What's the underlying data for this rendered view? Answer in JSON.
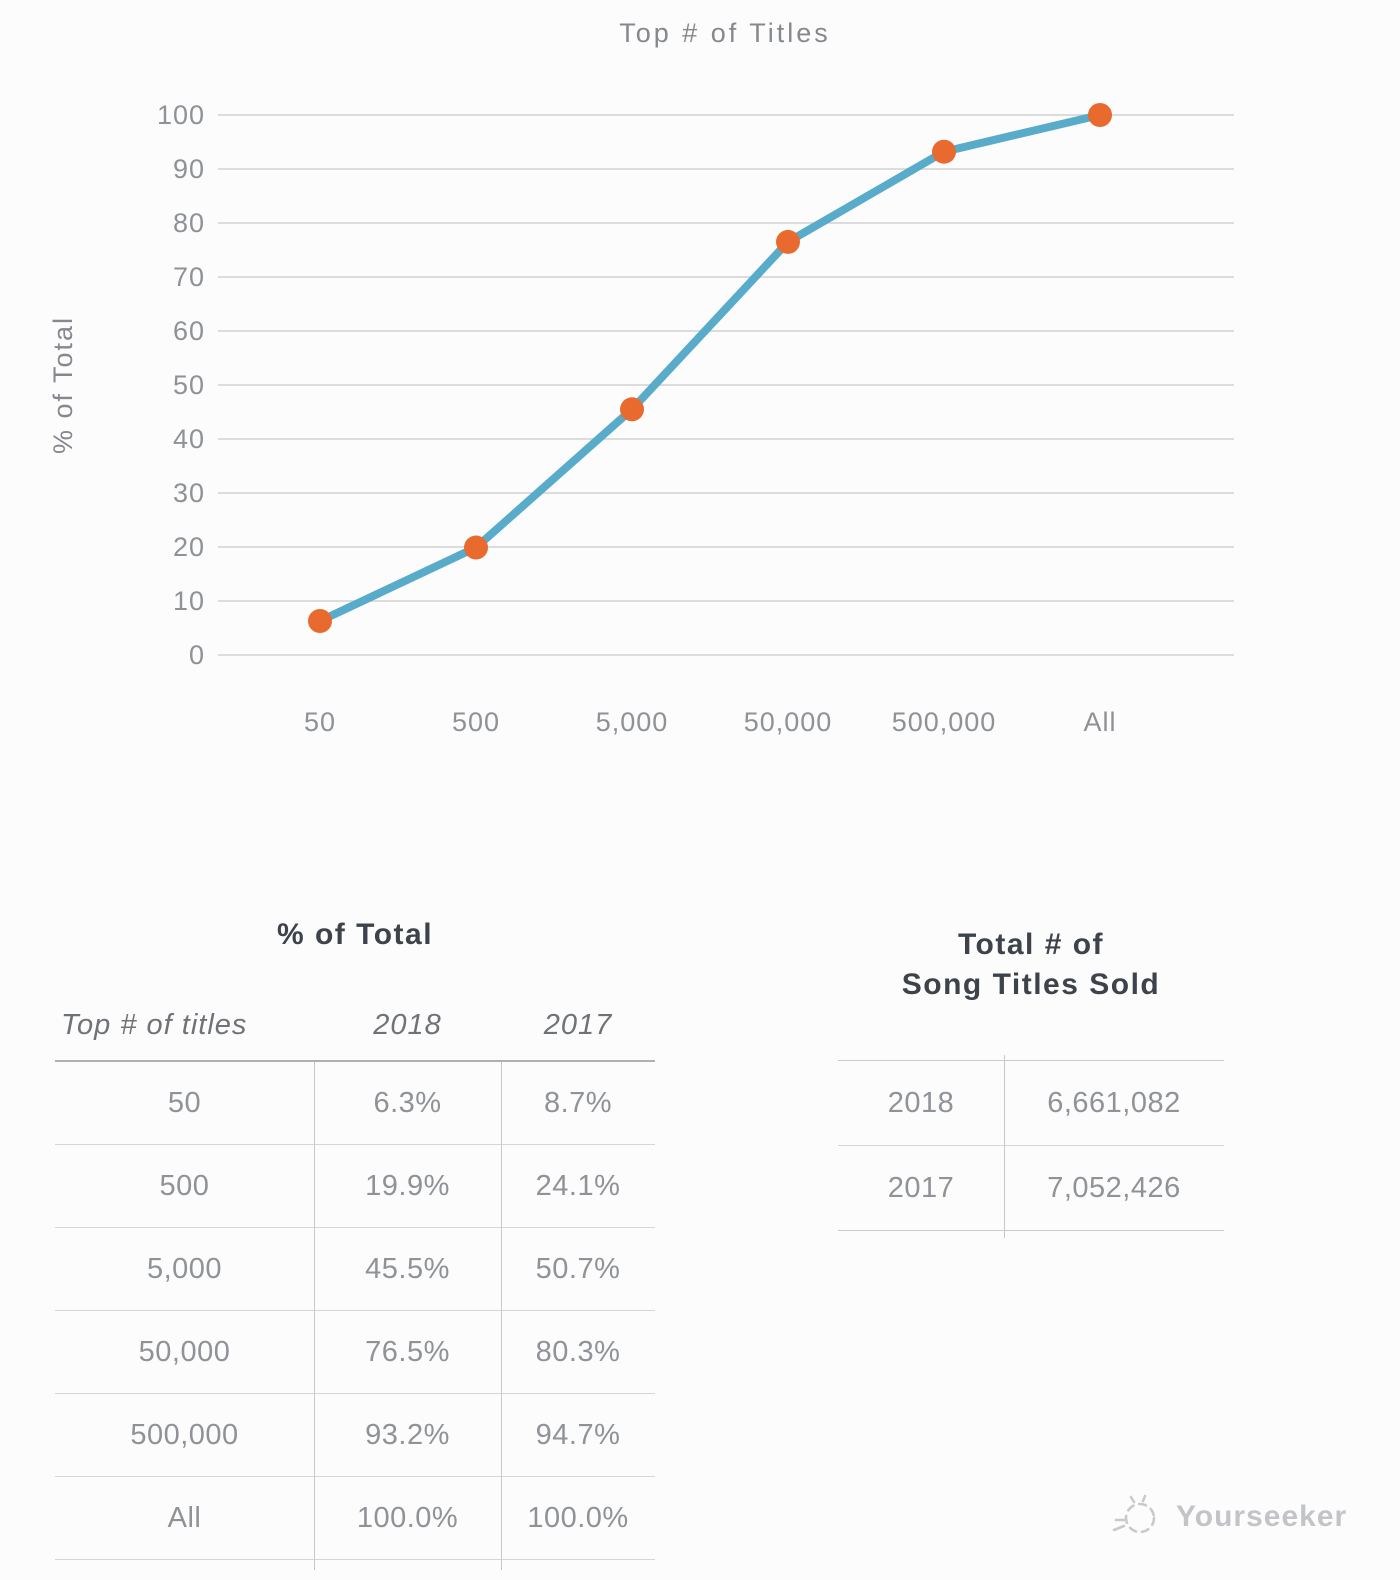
{
  "chart_data": {
    "type": "line",
    "title": "Top # of Titles",
    "ylabel": "% of Total",
    "categories": [
      "50",
      "500",
      "5,000",
      "50,000",
      "500,000",
      "All"
    ],
    "series": [
      {
        "name": "2018",
        "values": [
          6.3,
          19.9,
          45.5,
          76.5,
          93.2,
          100.0
        ]
      }
    ],
    "ylim": [
      0,
      100
    ],
    "ytick_step": 10,
    "grid": "horizontal",
    "legend": "none"
  },
  "percent_table": {
    "title": "% of Total",
    "headers": [
      "Top # of titles",
      "2018",
      "2017"
    ],
    "rows": [
      [
        "50",
        "6.3%",
        "8.7%"
      ],
      [
        "500",
        "19.9%",
        "24.1%"
      ],
      [
        "5,000",
        "45.5%",
        "50.7%"
      ],
      [
        "50,000",
        "76.5%",
        "80.3%"
      ],
      [
        "500,000",
        "93.2%",
        "94.7%"
      ],
      [
        "All",
        "100.0%",
        "100.0%"
      ]
    ]
  },
  "totals_table": {
    "title_line1": "Total # of",
    "title_line2": "Song Titles Sold",
    "rows": [
      [
        "2018",
        "6,661,082"
      ],
      [
        "2017",
        "7,052,426"
      ]
    ]
  },
  "watermark": {
    "label": "Yourseeker"
  },
  "colors": {
    "line": "#58ABC9",
    "marker": "#E86A2E",
    "grid": "#D2D2D2",
    "axis_text": "#8E9196",
    "title_text": "#85888D",
    "table_text": "#8F9297",
    "table_title": "#3E434B",
    "watermark": "#C7C8CB"
  }
}
